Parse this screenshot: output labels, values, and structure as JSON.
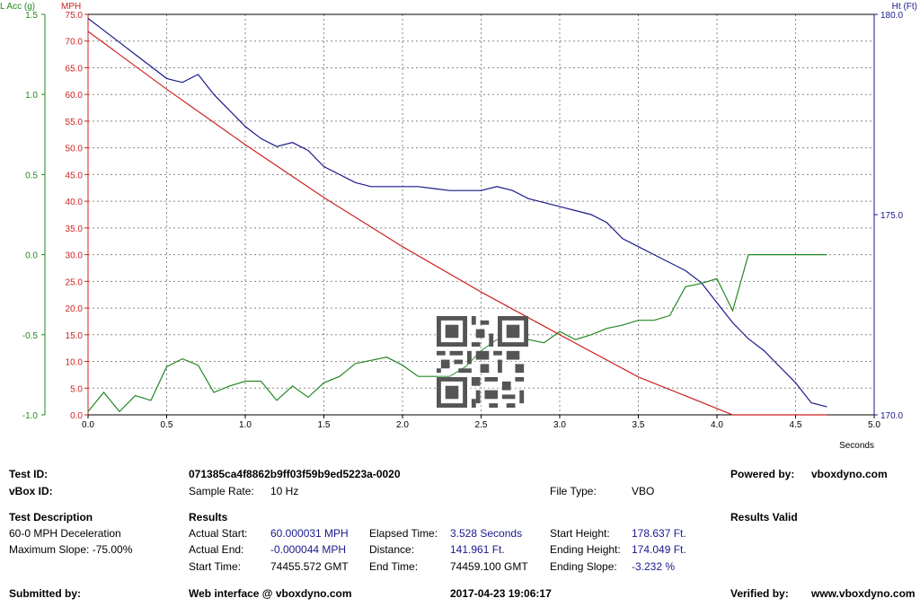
{
  "chart_data": {
    "type": "line",
    "x_label": "Seconds",
    "x_ticks": [
      "0.0",
      "0.5",
      "1.0",
      "1.5",
      "2.0",
      "2.5",
      "3.0",
      "3.5",
      "4.0",
      "4.5",
      "5.0"
    ],
    "xlim": [
      0,
      5
    ],
    "y_axes": {
      "lacc": {
        "label": "L Acc (g)",
        "ticks": [
          "1.5",
          "1.0",
          "0.5",
          "0.0",
          "-0.5",
          "-1.0"
        ],
        "range": [
          -1.0,
          1.5
        ],
        "color": "#228822"
      },
      "mph": {
        "label": "MPH",
        "ticks": [
          "75.0",
          "70.0",
          "65.0",
          "60.0",
          "55.0",
          "50.0",
          "45.0",
          "40.0",
          "35.0",
          "30.0",
          "25.0",
          "20.0",
          "15.0",
          "10.0",
          "5.0",
          "0.0"
        ],
        "range": [
          0,
          75
        ],
        "color": "#cc2222"
      },
      "ht": {
        "label": "Ht (Ft)",
        "ticks": [
          "180.0",
          "175.0",
          "170.0"
        ],
        "range": [
          170,
          180
        ],
        "color": "#1a1a8c"
      }
    },
    "grid": true,
    "series": [
      {
        "name": "MPH",
        "axis": "mph",
        "color": "#cc2222",
        "x": [
          0.0,
          0.5,
          1.0,
          1.5,
          2.0,
          2.5,
          3.0,
          3.5,
          4.0,
          4.1,
          4.2,
          4.3,
          4.5,
          4.7
        ],
        "y": [
          71.8,
          61.0,
          50.6,
          40.7,
          31.5,
          23.0,
          15.0,
          7.1,
          1.2,
          0,
          0,
          0,
          0,
          0
        ]
      },
      {
        "name": "Ht (Ft)",
        "axis": "ht",
        "color": "#1a1a8c",
        "x": [
          0.0,
          0.1,
          0.2,
          0.3,
          0.4,
          0.5,
          0.6,
          0.7,
          0.8,
          0.9,
          1.0,
          1.1,
          1.2,
          1.3,
          1.4,
          1.5,
          1.6,
          1.7,
          1.8,
          1.9,
          2.0,
          2.1,
          2.2,
          2.3,
          2.4,
          2.5,
          2.6,
          2.7,
          2.8,
          2.9,
          3.0,
          3.1,
          3.2,
          3.3,
          3.4,
          3.5,
          3.6,
          3.7,
          3.8,
          3.9,
          4.0,
          4.1,
          4.2,
          4.3,
          4.4,
          4.5,
          4.6,
          4.7
        ],
        "y": [
          179.9,
          179.6,
          179.3,
          179.0,
          178.7,
          178.4,
          178.3,
          178.5,
          178.0,
          177.6,
          177.2,
          176.9,
          176.7,
          176.8,
          176.6,
          176.2,
          176.0,
          175.8,
          175.7,
          175.7,
          175.7,
          175.7,
          175.65,
          175.6,
          175.6,
          175.6,
          175.7,
          175.6,
          175.4,
          175.3,
          175.2,
          175.1,
          175.0,
          174.8,
          174.4,
          174.2,
          174.0,
          173.8,
          173.6,
          173.3,
          172.8,
          172.3,
          171.9,
          171.6,
          171.2,
          170.8,
          170.3,
          170.2
        ]
      },
      {
        "name": "L Acc (g)",
        "axis": "lacc",
        "color": "#228822",
        "x": [
          0.0,
          0.1,
          0.2,
          0.3,
          0.4,
          0.5,
          0.6,
          0.7,
          0.8,
          0.9,
          1.0,
          1.1,
          1.2,
          1.3,
          1.4,
          1.5,
          1.6,
          1.7,
          1.8,
          1.9,
          2.0,
          2.1,
          2.2,
          2.3,
          2.4,
          2.5,
          2.6,
          2.7,
          2.8,
          2.9,
          3.0,
          3.1,
          3.2,
          3.3,
          3.4,
          3.5,
          3.6,
          3.7,
          3.8,
          3.9,
          4.0,
          4.1,
          4.2,
          4.3,
          4.4,
          4.5,
          4.6,
          4.7
        ],
        "y": [
          -0.98,
          -0.86,
          -0.98,
          -0.88,
          -0.91,
          -0.7,
          -0.65,
          -0.69,
          -0.86,
          -0.82,
          -0.79,
          -0.79,
          -0.91,
          -0.82,
          -0.89,
          -0.8,
          -0.76,
          -0.68,
          -0.66,
          -0.64,
          -0.69,
          -0.76,
          -0.76,
          -0.76,
          -0.7,
          -0.6,
          -0.53,
          -0.53,
          -0.53,
          -0.55,
          -0.48,
          -0.53,
          -0.5,
          -0.46,
          -0.44,
          -0.41,
          -0.41,
          -0.38,
          -0.2,
          -0.18,
          -0.15,
          -0.35,
          0.0,
          0.0,
          0.0,
          0.0,
          0.0,
          0.0
        ]
      }
    ]
  },
  "info": {
    "test_id_label": "Test ID:",
    "test_id_value": "071385ca4f8862b9ff03f59b9ed5223a-0020",
    "vbox_id_label": "vBox ID:",
    "sample_rate_label": "Sample Rate:",
    "sample_rate_value": "10 Hz",
    "file_type_label": "File Type:",
    "file_type_value": "VBO",
    "powered_by_label": "Powered by:",
    "powered_by_value": "vboxdyno.com",
    "test_description_label": "Test Description",
    "test_description_line1": "60-0 MPH Deceleration",
    "test_description_line2": "Maximum Slope:  -75.00%",
    "results_label": "Results",
    "results_valid": "Results Valid",
    "actual_start_label": "Actual Start:",
    "actual_start_value": "60.000031 MPH",
    "actual_end_label": "Actual End:",
    "actual_end_value": "-0.000044 MPH",
    "start_time_label": "Start Time:",
    "start_time_value": "74455.572 GMT",
    "elapsed_time_label": "Elapsed Time:",
    "elapsed_time_value": "3.528 Seconds",
    "distance_label": "Distance:",
    "distance_value": "141.961 Ft.",
    "end_time_label": "End Time:",
    "end_time_value": "74459.100 GMT",
    "start_height_label": "Start Height:",
    "start_height_value": "178.637 Ft.",
    "ending_height_label": "Ending Height:",
    "ending_height_value": "174.049 Ft.",
    "ending_slope_label": "Ending Slope:",
    "ending_slope_value": "-3.232 %",
    "submitted_by_label": "Submitted by:",
    "web_interface": "Web interface @ vboxdyno.com",
    "timestamp": "2017-04-23 19:06:17",
    "verified_by_label": "Verified by:",
    "verified_by_value": "www.vboxdyno.com"
  },
  "qr_code": "qr-code-icon"
}
